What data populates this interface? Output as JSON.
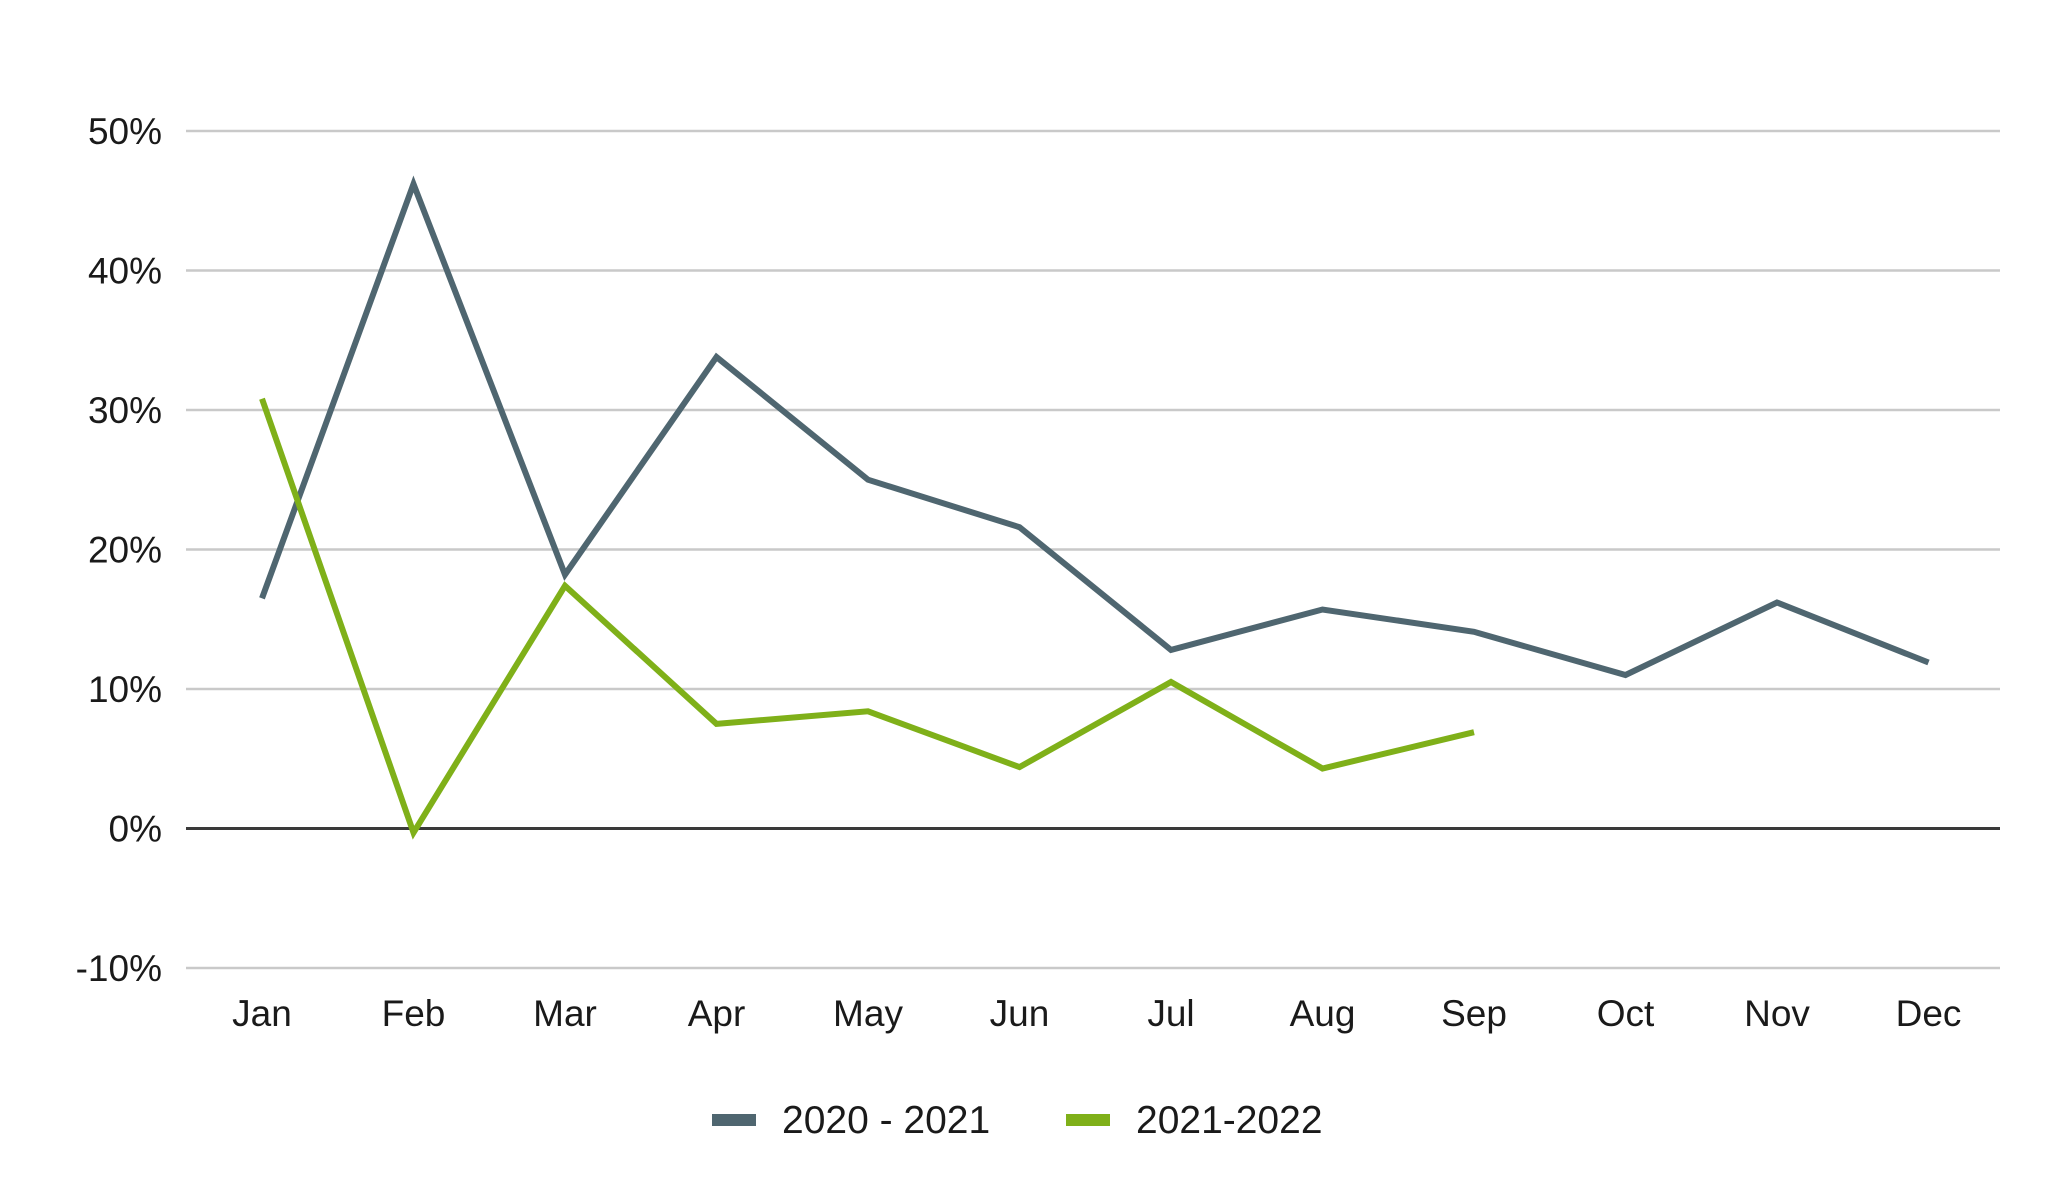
{
  "chart_data": {
    "type": "line",
    "title": "",
    "xlabel": "",
    "ylabel": "",
    "categories": [
      "Jan",
      "Feb",
      "Mar",
      "Apr",
      "May",
      "Jun",
      "Jul",
      "Aug",
      "Sep",
      "Oct",
      "Nov",
      "Dec"
    ],
    "ylim": [
      -10,
      50
    ],
    "yticks": [
      -10,
      0,
      10,
      20,
      30,
      40,
      50
    ],
    "ytick_labels": [
      "-10%",
      "0%",
      "10%",
      "20%",
      "30%",
      "40%",
      "50%"
    ],
    "grid": true,
    "legend_position": "bottom",
    "series": [
      {
        "name": "2020 - 2021",
        "color": "#4f6670",
        "values": [
          16.5,
          46.2,
          18.2,
          33.8,
          25.0,
          21.6,
          12.8,
          15.7,
          14.1,
          11.0,
          16.2,
          11.9
        ]
      },
      {
        "name": "2021-2022",
        "color": "#7fb019",
        "values": [
          30.8,
          -0.3,
          17.4,
          7.5,
          8.4,
          4.4,
          10.5,
          4.3,
          6.9,
          null,
          null,
          null
        ]
      }
    ]
  }
}
